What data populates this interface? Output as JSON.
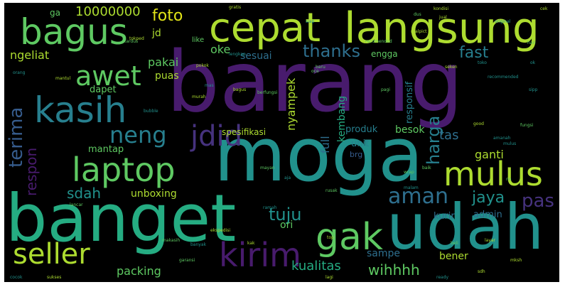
{
  "palette": {
    "dark_purple": "#481b6d",
    "purple": "#46327e",
    "blue": "#365c8d",
    "teal_blue": "#2e6f8e",
    "teal": "#277f8e",
    "green_teal": "#21918c",
    "green": "#25ac82",
    "light_green": "#5ec962",
    "yellow_green": "#addc30",
    "yellow": "#e2e418"
  },
  "words": {
    "barang": "barang",
    "moga": "moga",
    "banget": "banget",
    "udah": "udah",
    "langsung": "langsung",
    "cepat": "cepat",
    "bagus": "bagus",
    "kasih": "kasih",
    "laptop": "laptop",
    "mulus": "mulus",
    "gak": "gak",
    "kirim": "kirim",
    "seller": "seller",
    "awet": "awet",
    "terima": "terima",
    "jdid": "jdid",
    "neng": "neng",
    "aman": "aman",
    "respon": "respon",
    "harga": "harga",
    "nyampek": "nyampek",
    "foto": "foto",
    "10000000": "10000000",
    "thanks": "thanks",
    "fast": "fast",
    "pas": "pas",
    "jaya": "jaya",
    "tuju": "tuju",
    "kualitas": "kualitas",
    "wihhhh": "wihhhh",
    "packing": "packing",
    "sdah": "sdah",
    "mantap": "mantap",
    "unboxing": "unboxing",
    "pakai": "pakai",
    "puas": "puas",
    "oke": "oke",
    "sesuai": "sesuai",
    "engga": "engga",
    "ngeliat": "ngeliat",
    "jd": "jd",
    "ga": "ga",
    "dapet": "dapet",
    "full": "full",
    "kembang": "kembang",
    "responsif": "responsif",
    "tas": "tas",
    "produk": "produk",
    "besok": "besok",
    "spesifikasi": "spesifikasi",
    "unit": "unit",
    "brg": "brg",
    "ganti": "ganti",
    "ori": "ori",
    "kurir": "kurir",
    "admin": "admin",
    "sampe": "sampe",
    "bener": "bener",
    "like": "like",
    "recommended": "recommended",
    "cek": "cek",
    "gratis": "gratis",
    "murah": "murah",
    "rusak": "rusak",
    "sipp": "sipp",
    "mayan": "mayan",
    "seken": "seken",
    "orang": "orang",
    "mantul": "mantul",
    "kardus": "kardus",
    "bubble": "bubble",
    "ekspedisi": "ekspedisi",
    "garansi": "garansi",
    "original": "original",
    "layar": "layar",
    "pagi": "pagi",
    "malam": "malam",
    "lagi": "lagi",
    "beli": "beli",
    "cocok": "cocok",
    "sukses": "sukses",
    "hari": "hari",
    "lengkap": "lengkap",
    "kondisi": "kondisi",
    "baru": "baru",
    "mulus2": "mulus",
    "jual": "jual",
    "wrap": "wrap",
    "ramah": "ramah",
    "tokped": "tokped",
    "recomended": "recomended",
    "banyak": "banyak",
    "top": "top",
    "oce": "oce",
    "mas": "mas",
    "mksh": "mksh",
    "baik": "baik",
    "ok": "ok",
    "pokok": "pokok",
    "berfungsi": "berfungsi",
    "amanah": "amanah",
    "realpict": "realpict",
    "lancar": "lancar",
    "toko": "toko",
    "good": "good",
    "dus": "dus",
    "siap": "siap",
    "bagus2": "bagus",
    "makasih": "makasih",
    "ready": "ready",
    "sdh": "sdh",
    "no": "no",
    "aja": "aja",
    "kak": "kak",
    "fungsi": "fungsi"
  }
}
